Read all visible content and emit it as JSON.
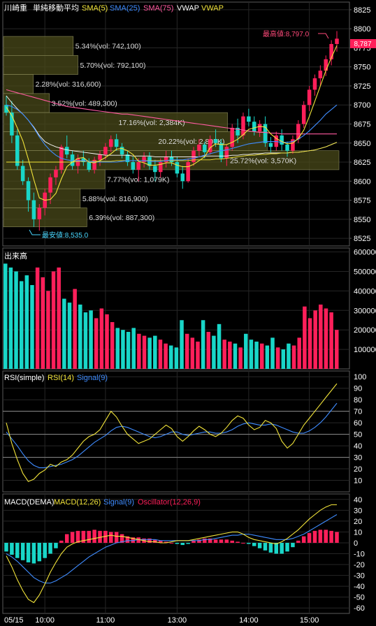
{
  "colors": {
    "bg": "#000000",
    "frame": "#5a5a5a",
    "grid": "#262626",
    "text": "#ffffff",
    "up": "#ff1f5a",
    "down": "#19d6c8",
    "sma5": "#f2e43a",
    "sma25": "#3f8cff",
    "sma75": "#ff5aa0",
    "vwap": "#ffffff",
    "vwap2": "#f2e43a",
    "rsi": "#f2e43a",
    "rsi_signal": "#3f8cff",
    "macd": "#f2e43a",
    "macd_signal": "#3f8cff",
    "osc": "#ff1f5a",
    "osc_neg": "#19d6c8",
    "profile_fill": "#4a4a1a",
    "high_label": "#ff4a7a",
    "low_label": "#4ad8ff"
  },
  "price_panel": {
    "legend": {
      "name": "川崎重",
      "avg_label": "単純移動平均",
      "sma5": "SMA(5)",
      "sma25": "SMA(25)",
      "sma75": "SMA(75)",
      "vwap1": "VWAP",
      "vwap2": "VWAP"
    },
    "high_label": "最高値:8,797.0",
    "low_label": "最安値:8,535.0",
    "last_price": "8,787"
  },
  "volume_panel": {
    "title": "出来高"
  },
  "rsi_panel": {
    "title": "RSI(simple)",
    "rsi": "RSI(14)",
    "signal": "Signal(9)"
  },
  "macd_panel": {
    "title": "MACD(DEMA)",
    "macd": "MACD(12,26)",
    "signal": "Signal(9)",
    "osc": "Oscillator(12,26,9)"
  },
  "date_label": "05/15",
  "chart_data": [
    {
      "type": "candlestick",
      "title": "川崎重",
      "y_ticks": [
        8525,
        8550,
        8575,
        8600,
        8625,
        8650,
        8675,
        8700,
        8725,
        8750,
        8775,
        8800,
        8825
      ],
      "ylim": [
        8515,
        8835
      ],
      "x_ticks": [
        "10:00",
        "11:00",
        "13:00",
        "14:00",
        "15:00"
      ],
      "date": "05/15",
      "ohlc": [
        [
          8700,
          8712,
          8686,
          8690
        ],
        [
          8690,
          8705,
          8650,
          8660
        ],
        [
          8660,
          8668,
          8615,
          8620
        ],
        [
          8620,
          8628,
          8595,
          8600
        ],
        [
          8600,
          8605,
          8560,
          8575
        ],
        [
          8575,
          8585,
          8540,
          8550
        ],
        [
          8550,
          8570,
          8535,
          8565
        ],
        [
          8565,
          8590,
          8555,
          8585
        ],
        [
          8585,
          8610,
          8570,
          8605
        ],
        [
          8605,
          8620,
          8595,
          8615
        ],
        [
          8615,
          8648,
          8610,
          8645
        ],
        [
          8645,
          8660,
          8630,
          8635
        ],
        [
          8635,
          8640,
          8615,
          8620
        ],
        [
          8620,
          8635,
          8610,
          8630
        ],
        [
          8630,
          8640,
          8620,
          8625
        ],
        [
          8625,
          8630,
          8612,
          8615
        ],
        [
          8615,
          8632,
          8610,
          8628
        ],
        [
          8628,
          8640,
          8620,
          8635
        ],
        [
          8635,
          8650,
          8628,
          8645
        ],
        [
          8645,
          8660,
          8638,
          8655
        ],
        [
          8655,
          8662,
          8640,
          8645
        ],
        [
          8645,
          8650,
          8630,
          8635
        ],
        [
          8635,
          8640,
          8620,
          8625
        ],
        [
          8625,
          8632,
          8610,
          8615
        ],
        [
          8615,
          8630,
          8600,
          8625
        ],
        [
          8625,
          8638,
          8618,
          8632
        ],
        [
          8632,
          8638,
          8615,
          8620
        ],
        [
          8620,
          8628,
          8600,
          8612
        ],
        [
          8612,
          8630,
          8605,
          8625
        ],
        [
          8625,
          8640,
          8618,
          8632
        ],
        [
          8632,
          8640,
          8620,
          8625
        ],
        [
          8625,
          8632,
          8605,
          8610
        ],
        [
          8610,
          8620,
          8590,
          8600
        ],
        [
          8600,
          8630,
          8598,
          8625
        ],
        [
          8625,
          8645,
          8620,
          8640
        ],
        [
          8640,
          8655,
          8632,
          8648
        ],
        [
          8648,
          8652,
          8630,
          8638
        ],
        [
          8638,
          8660,
          8635,
          8655
        ],
        [
          8655,
          8668,
          8645,
          8650
        ],
        [
          8650,
          8655,
          8625,
          8630
        ],
        [
          8630,
          8648,
          8620,
          8645
        ],
        [
          8645,
          8675,
          8640,
          8670
        ],
        [
          8670,
          8682,
          8650,
          8660
        ],
        [
          8660,
          8690,
          8655,
          8685
        ],
        [
          8685,
          8695,
          8672,
          8678
        ],
        [
          8678,
          8685,
          8660,
          8665
        ],
        [
          8665,
          8680,
          8658,
          8675
        ],
        [
          8675,
          8685,
          8645,
          8650
        ],
        [
          8650,
          8658,
          8638,
          8645
        ],
        [
          8645,
          8665,
          8640,
          8660
        ],
        [
          8660,
          8668,
          8640,
          8648
        ],
        [
          8648,
          8652,
          8632,
          8640
        ],
        [
          8640,
          8660,
          8636,
          8655
        ],
        [
          8655,
          8680,
          8650,
          8675
        ],
        [
          8675,
          8705,
          8670,
          8700
        ],
        [
          8700,
          8725,
          8692,
          8720
        ],
        [
          8720,
          8740,
          8712,
          8735
        ],
        [
          8735,
          8752,
          8725,
          8745
        ],
        [
          8745,
          8765,
          8738,
          8760
        ],
        [
          8760,
          8785,
          8752,
          8780
        ],
        [
          8780,
          8797,
          8770,
          8787
        ]
      ],
      "sma5": [
        8697,
        8686,
        8670,
        8653,
        8629,
        8602,
        8578,
        8575,
        8576,
        8584,
        8603,
        8619,
        8625,
        8630,
        8631,
        8625,
        8624,
        8627,
        8631,
        8636,
        8642,
        8643,
        8640,
        8635,
        8626,
        8624,
        8621,
        8621,
        8622,
        8624,
        8624,
        8621,
        8619,
        8619,
        8622,
        8627,
        8632,
        8644,
        8649,
        8648,
        8648,
        8651,
        8655,
        8661,
        8668,
        8670,
        8672,
        8671,
        8662,
        8656,
        8652,
        8649,
        8650,
        8656,
        8667,
        8685,
        8705,
        8725,
        8745,
        8762,
        8778
      ],
      "sma25": [
        8700,
        8698,
        8694,
        8688,
        8680,
        8670,
        8658,
        8648,
        8640,
        8634,
        8630,
        8628,
        8627,
        8627,
        8627,
        8626,
        8625,
        8625,
        8625,
        8625,
        8625,
        8626,
        8627,
        8627,
        8627,
        8627,
        8626,
        8626,
        8626,
        8627,
        8628,
        8628,
        8628,
        8629,
        8630,
        8632,
        8634,
        8636,
        8638,
        8640,
        8641,
        8643,
        8645,
        8647,
        8649,
        8650,
        8651,
        8652,
        8652,
        8652,
        8651,
        8651,
        8652,
        8655,
        8660,
        8666,
        8673,
        8680,
        8688,
        8694,
        8700
      ],
      "sma75": [
        8720,
        8718,
        8716,
        8714,
        8712,
        8710,
        8708,
        8706,
        8704,
        8702,
        8700,
        8698,
        8697,
        8696,
        8695,
        8694,
        8693,
        8692,
        8691,
        8690,
        8689,
        8688,
        8688,
        8687,
        8686,
        8685,
        8684,
        8683,
        8682,
        8681,
        8680,
        8679,
        8678,
        8677,
        8676,
        8675,
        8674,
        8673,
        8672,
        8671,
        8670,
        8669,
        8668,
        8667,
        8666,
        8665,
        8664,
        8664,
        8663,
        8663,
        8662,
        8662,
        8662,
        8662,
        8662,
        8662,
        8662,
        8662,
        8662,
        8662,
        8662
      ],
      "vwap": [
        8712,
        8703,
        8695,
        8688,
        8680,
        8671,
        8660,
        8652,
        8648,
        8645,
        8643,
        8641,
        8640,
        8639,
        8638,
        8637,
        8636,
        8635,
        8634,
        8634,
        8634,
        8634,
        8634,
        8633,
        8633,
        8633,
        8633,
        8632,
        8632,
        8632,
        8632,
        8632,
        8632,
        8632,
        8632,
        8632,
        8633,
        8633,
        8633,
        8633,
        8633,
        8634,
        8634,
        8635,
        8635,
        8636,
        8636,
        8637,
        8637,
        8637,
        8637,
        8637,
        8638,
        8638,
        8639,
        8640,
        8641,
        8643,
        8645,
        8648,
        8651
      ],
      "vwap2": [
        8625,
        8625,
        8625,
        8625,
        8625,
        8625,
        8625,
        8625,
        8625,
        8625,
        8625,
        8625,
        8625,
        8626,
        8626,
        8626,
        8626,
        8626,
        8626,
        8626,
        8627,
        8627,
        8627,
        8627,
        8627,
        8627,
        8627,
        8627,
        8627,
        8627,
        8627,
        8627,
        8627,
        8627,
        8628,
        8628,
        8628,
        8628,
        8629,
        8629,
        8630,
        8631,
        8632,
        8633,
        8634,
        8634,
        8635,
        8635,
        8636,
        8636,
        8637,
        8637,
        8638,
        8638,
        8639,
        8640,
        8641,
        8643,
        8645,
        8648,
        8651
      ],
      "volume_profile": [
        {
          "low": 8765,
          "high": 8790,
          "volume_label": "5.34%(vol: 742,100)",
          "volume": 742100
        },
        {
          "low": 8740,
          "high": 8765,
          "volume_label": "5.70%(vol: 792,100)",
          "volume": 792100
        },
        {
          "low": 8715,
          "high": 8740,
          "volume_label": "2.28%(vol: 316,600)",
          "volume": 316600
        },
        {
          "low": 8690,
          "high": 8715,
          "volume_label": "3.52%(vol: 489,300)",
          "volume": 489300
        },
        {
          "low": 8665,
          "high": 8690,
          "volume_label": "17.16%(vol: 2,384K)",
          "volume": 2384000
        },
        {
          "low": 8640,
          "high": 8665,
          "volume_label": "20.22%(vol: 2,807K)",
          "volume": 2807000
        },
        {
          "low": 8615,
          "high": 8640,
          "volume_label": "25.72%(vol: 3,570K)",
          "volume": 3570000
        },
        {
          "low": 8590,
          "high": 8615,
          "volume_label": "7.77%(vol: 1,079K)",
          "volume": 1079000
        },
        {
          "low": 8565,
          "high": 8590,
          "volume_label": "5.88%(vol: 816,900)",
          "volume": 816900
        },
        {
          "low": 8540,
          "high": 8565,
          "volume_label": "6.39%(vol: 887,300)",
          "volume": 887300
        }
      ]
    },
    {
      "type": "bar",
      "title": "出来高",
      "y_ticks": [
        100000,
        200000,
        300000,
        400000,
        500000,
        600000
      ],
      "ylim": [
        0,
        620000
      ],
      "volume": [
        540000,
        520000,
        500000,
        450000,
        480000,
        430000,
        520000,
        470000,
        400000,
        500000,
        520000,
        360000,
        340000,
        410000,
        330000,
        290000,
        300000,
        260000,
        310000,
        280000,
        240000,
        210000,
        200000,
        190000,
        210000,
        180000,
        170000,
        160000,
        170000,
        150000,
        130000,
        120000,
        110000,
        250000,
        180000,
        160000,
        140000,
        250000,
        190000,
        170000,
        230000,
        150000,
        140000,
        130000,
        110000,
        180000,
        150000,
        140000,
        130000,
        120000,
        160000,
        110000,
        100000,
        130000,
        120000,
        160000,
        320000,
        260000,
        300000,
        330000,
        310000,
        290000,
        200000
      ]
    },
    {
      "type": "line",
      "title": "RSI(simple)",
      "y_ticks": [
        10,
        20,
        30,
        40,
        50,
        60,
        70,
        80,
        90,
        100
      ],
      "ylim": [
        0,
        105
      ],
      "hlines": [
        30,
        50,
        70
      ],
      "rsi": [
        60,
        42,
        28,
        16,
        9,
        11,
        16,
        19,
        24,
        22,
        26,
        28,
        32,
        38,
        44,
        48,
        50,
        54,
        62,
        70,
        65,
        57,
        50,
        46,
        42,
        44,
        46,
        50,
        54,
        58,
        55,
        48,
        44,
        48,
        53,
        57,
        54,
        50,
        48,
        51,
        56,
        62,
        66,
        64,
        58,
        54,
        56,
        62,
        60,
        55,
        44,
        38,
        42,
        50,
        58,
        64,
        70,
        76,
        82,
        88,
        94
      ],
      "signal": [
        52,
        46,
        40,
        33,
        27,
        23,
        21,
        21,
        22,
        23,
        24,
        26,
        28,
        31,
        35,
        39,
        43,
        46,
        49,
        53,
        56,
        57,
        56,
        54,
        52,
        50,
        48,
        47,
        48,
        50,
        52,
        52,
        50,
        49,
        50,
        51,
        52,
        52,
        51,
        51,
        52,
        54,
        57,
        59,
        60,
        59,
        58,
        58,
        59,
        58,
        56,
        54,
        52,
        51,
        51,
        53,
        56,
        60,
        65,
        71,
        77
      ]
    },
    {
      "type": "line",
      "title": "MACD(DEMA)",
      "y_ticks": [
        -60,
        -50,
        -40,
        -30,
        -20,
        -10,
        0,
        10,
        20,
        30,
        40
      ],
      "ylim": [
        -65,
        45
      ],
      "macd": [
        -12,
        -22,
        -34,
        -44,
        -52,
        -55,
        -48,
        -38,
        -27,
        -18,
        -10,
        -4,
        -1,
        1,
        2,
        3,
        4,
        5,
        6,
        7,
        6,
        6,
        5,
        4,
        3,
        2,
        1,
        1,
        0,
        0,
        1,
        2,
        2,
        2,
        3,
        4,
        5,
        6,
        7,
        8,
        9,
        10,
        10,
        8,
        5,
        3,
        2,
        1,
        0,
        -1,
        1,
        4,
        8,
        12,
        17,
        22,
        26,
        30,
        33,
        35,
        35
      ],
      "signal": [
        -10,
        -13,
        -17,
        -22,
        -27,
        -32,
        -35,
        -37,
        -37,
        -35,
        -32,
        -29,
        -25,
        -21,
        -17,
        -13,
        -10,
        -7,
        -4,
        -2,
        0,
        1,
        2,
        2,
        3,
        3,
        3,
        3,
        2,
        2,
        2,
        2,
        2,
        2,
        2,
        2,
        3,
        3,
        4,
        5,
        6,
        7,
        7,
        8,
        8,
        7,
        6,
        5,
        4,
        3,
        3,
        3,
        4,
        6,
        8,
        11,
        14,
        17,
        20,
        23,
        26
      ],
      "oscillator": [
        -8,
        -11,
        -14,
        -16,
        -18,
        -19,
        -17,
        -14,
        -10,
        -5,
        2,
        8,
        10,
        11,
        11,
        11,
        12,
        11,
        11,
        10,
        10,
        8,
        6,
        5,
        5,
        4,
        4,
        3,
        2,
        1,
        0,
        -1,
        -2,
        -1,
        2,
        3,
        4,
        4,
        3,
        3,
        3,
        2,
        1,
        0,
        -1,
        -3,
        -5,
        -7,
        -9,
        -10,
        -10,
        -8,
        -4,
        2,
        6,
        9,
        11,
        12,
        12,
        11,
        10
      ]
    }
  ]
}
